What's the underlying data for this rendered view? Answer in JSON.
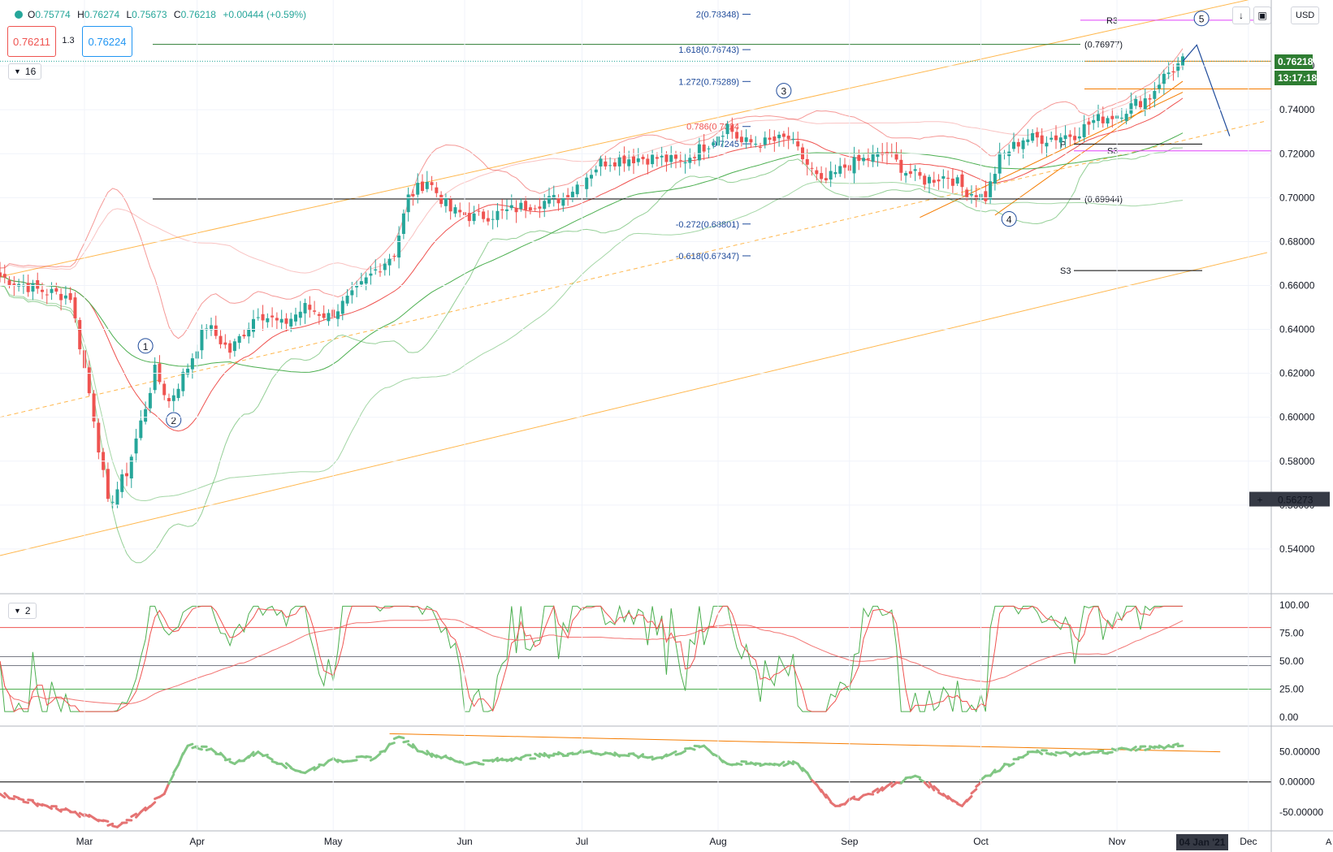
{
  "header": {
    "open_label": "O",
    "open": "0.75774",
    "high_label": "H",
    "high": "0.76274",
    "low_label": "L",
    "low": "0.75673",
    "close_label": "C",
    "close": "0.76218",
    "change": "+0.00444 (+0.59%)",
    "sell_price": "0.76211",
    "spread": "1.3",
    "buy_price": "0.76224",
    "interval_badge": "16",
    "oscillator_badge": "2",
    "currency": "USD",
    "auto_label": "A"
  },
  "colors": {
    "bull": "#26a69a",
    "bear": "#ef5350",
    "fib": "#1e4a9a",
    "fib_786": "#ef5350",
    "channel": "#ffb74d",
    "pivot": "#000000",
    "r3": "#e040fb",
    "band_red": "#ef5350",
    "band_green": "#4caf50",
    "price_tag": "#2e7d32",
    "crosshair_tag": "#363a45"
  },
  "icons": {
    "collapse": "chevron-down-icon",
    "scroll": "arrow-down-icon",
    "fullscreen": "fullscreen-icon",
    "crosshair": "plus-icon"
  },
  "chart_data": [
    {
      "type": "candlestick",
      "pane": "price",
      "ylim": [
        0.52,
        0.79
      ],
      "y_ticks": [
        "0.76000",
        "0.74000",
        "0.72000",
        "0.70000",
        "0.68000",
        "0.66000",
        "0.64000",
        "0.62000",
        "0.60000",
        "0.58000",
        "0.56000",
        "0.54000"
      ],
      "x_ticks": [
        "Mar",
        "Apr",
        "May",
        "Jun",
        "Jul",
        "Aug",
        "Sep",
        "Oct",
        "Nov",
        "Dec"
      ],
      "x_marker": "04 Jan '21",
      "last_price": "0.76218",
      "countdown": "13:17:18",
      "crosshair_price": "0.56273",
      "close_path": [
        {
          "x": 0,
          "y": 0.664
        },
        {
          "x": 8,
          "y": 0.658
        },
        {
          "x": 15,
          "y": 0.655
        },
        {
          "x": 20,
          "y": 0.6
        },
        {
          "x": 23,
          "y": 0.56
        },
        {
          "x": 27,
          "y": 0.575
        },
        {
          "x": 31,
          "y": 0.605
        },
        {
          "x": 33,
          "y": 0.621
        },
        {
          "x": 36,
          "y": 0.607
        },
        {
          "x": 40,
          "y": 0.623
        },
        {
          "x": 44,
          "y": 0.642
        },
        {
          "x": 49,
          "y": 0.63
        },
        {
          "x": 55,
          "y": 0.648
        },
        {
          "x": 60,
          "y": 0.642
        },
        {
          "x": 65,
          "y": 0.65
        },
        {
          "x": 70,
          "y": 0.646
        },
        {
          "x": 75,
          "y": 0.655
        },
        {
          "x": 80,
          "y": 0.667
        },
        {
          "x": 84,
          "y": 0.675
        },
        {
          "x": 87,
          "y": 0.7
        },
        {
          "x": 91,
          "y": 0.708
        },
        {
          "x": 96,
          "y": 0.694
        },
        {
          "x": 101,
          "y": 0.691
        },
        {
          "x": 107,
          "y": 0.693
        },
        {
          "x": 113,
          "y": 0.697
        },
        {
          "x": 120,
          "y": 0.7
        },
        {
          "x": 128,
          "y": 0.716
        },
        {
          "x": 133,
          "y": 0.718
        },
        {
          "x": 140,
          "y": 0.718
        },
        {
          "x": 145,
          "y": 0.716
        },
        {
          "x": 151,
          "y": 0.725
        },
        {
          "x": 155,
          "y": 0.733
        },
        {
          "x": 158,
          "y": 0.725
        },
        {
          "x": 163,
          "y": 0.725
        },
        {
          "x": 168,
          "y": 0.727
        },
        {
          "x": 171,
          "y": 0.718
        },
        {
          "x": 175,
          "y": 0.706
        },
        {
          "x": 180,
          "y": 0.714
        },
        {
          "x": 185,
          "y": 0.718
        },
        {
          "x": 189,
          "y": 0.72
        },
        {
          "x": 193,
          "y": 0.712
        },
        {
          "x": 197,
          "y": 0.708
        },
        {
          "x": 202,
          "y": 0.71
        },
        {
          "x": 206,
          "y": 0.703
        },
        {
          "x": 210,
          "y": 0.7
        },
        {
          "x": 213,
          "y": 0.718
        },
        {
          "x": 218,
          "y": 0.727
        },
        {
          "x": 223,
          "y": 0.727
        },
        {
          "x": 229,
          "y": 0.729
        },
        {
          "x": 233,
          "y": 0.735
        },
        {
          "x": 238,
          "y": 0.738
        },
        {
          "x": 243,
          "y": 0.744
        },
        {
          "x": 245,
          "y": 0.746
        },
        {
          "x": 247,
          "y": 0.753
        },
        {
          "x": 249,
          "y": 0.757
        },
        {
          "x": 252,
          "y": 0.762
        }
      ],
      "fib_levels": [
        {
          "label": "2(0.78348)",
          "price": 0.7835
        },
        {
          "label": "1.618(0.76743)",
          "price": 0.7674
        },
        {
          "label": "1.272(0.75289)",
          "price": 0.7529
        },
        {
          "label": "0.786(0.7324",
          "price": 0.7324
        },
        {
          "label": "0.7245",
          "price": 0.7245
        },
        {
          "label": "-0.272(0.68801)",
          "price": 0.688
        },
        {
          "label": "-0.618(0.67347)",
          "price": 0.6735
        }
      ],
      "horizontal_levels": [
        {
          "label": "(0.76977)",
          "price": 0.7698
        },
        {
          "label": "(0.69944)",
          "price": 0.6994
        },
        {
          "label": "R3",
          "price": 0.7808
        },
        {
          "label": "P",
          "price": 0.7244
        },
        {
          "label": "S3",
          "price": 0.7213
        },
        {
          "label": "S3",
          "price": 0.6668
        }
      ],
      "wave_labels": [
        "1",
        "2",
        "3",
        "4",
        "5"
      ]
    },
    {
      "type": "line",
      "pane": "stochastic",
      "ylim": [
        0,
        100
      ],
      "y_ticks": [
        "100.00",
        "75.00",
        "50.00",
        "25.00",
        "0.00"
      ],
      "levels": [
        80,
        54,
        46,
        25
      ],
      "last_values": {
        "fast": 99,
        "slow": 97,
        "ma": 85
      }
    },
    {
      "type": "line",
      "pane": "momentum",
      "ylim": [
        -80,
        90
      ],
      "y_ticks": [
        "50.00000",
        "0.00000",
        "-50.00000"
      ],
      "zero_line": 0,
      "trendline": {
        "from": {
          "x": 83,
          "y": 80
        },
        "to": {
          "x": 260,
          "y": 50
        }
      },
      "series": [
        {
          "x": 0,
          "y": -20
        },
        {
          "x": 10,
          "y": -40
        },
        {
          "x": 20,
          "y": -60
        },
        {
          "x": 25,
          "y": -75
        },
        {
          "x": 30,
          "y": -50
        },
        {
          "x": 35,
          "y": -20
        },
        {
          "x": 40,
          "y": 60
        },
        {
          "x": 45,
          "y": 55
        },
        {
          "x": 50,
          "y": 30
        },
        {
          "x": 55,
          "y": 50
        },
        {
          "x": 60,
          "y": 30
        },
        {
          "x": 65,
          "y": 15
        },
        {
          "x": 70,
          "y": 35
        },
        {
          "x": 80,
          "y": 40
        },
        {
          "x": 85,
          "y": 75
        },
        {
          "x": 90,
          "y": 50
        },
        {
          "x": 100,
          "y": 30
        },
        {
          "x": 110,
          "y": 40
        },
        {
          "x": 125,
          "y": 50
        },
        {
          "x": 140,
          "y": 40
        },
        {
          "x": 150,
          "y": 60
        },
        {
          "x": 155,
          "y": 30
        },
        {
          "x": 170,
          "y": 30
        },
        {
          "x": 178,
          "y": -40
        },
        {
          "x": 185,
          "y": -20
        },
        {
          "x": 195,
          "y": 10
        },
        {
          "x": 205,
          "y": -40
        },
        {
          "x": 210,
          "y": 10
        },
        {
          "x": 220,
          "y": 50
        },
        {
          "x": 230,
          "y": 45
        },
        {
          "x": 240,
          "y": 55
        },
        {
          "x": 252,
          "y": 60
        }
      ]
    }
  ]
}
